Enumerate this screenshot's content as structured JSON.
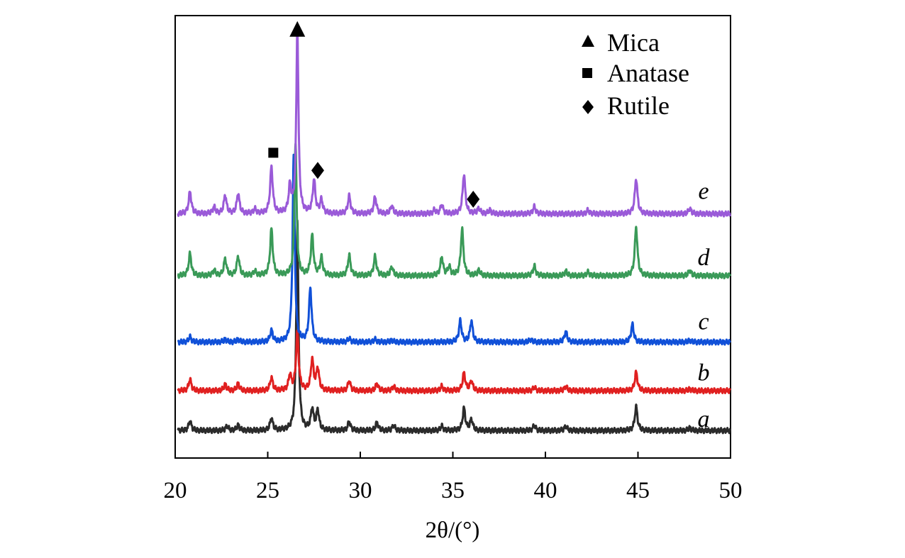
{
  "chart_data": {
    "type": "line",
    "title": "",
    "xlabel": "2θ/(°)",
    "ylabel": "",
    "xlim": [
      20,
      50
    ],
    "xticks": [
      20,
      25,
      30,
      35,
      40,
      45,
      50
    ],
    "xtick_labels": [
      "20",
      "25",
      "30",
      "35",
      "40",
      "45",
      "50"
    ],
    "y_units": "offset intensity (arbitrary)",
    "ylim": [
      0,
      100
    ],
    "legend_position": "top-right",
    "legend": [
      {
        "marker": "triangle",
        "label": "Mica"
      },
      {
        "marker": "square",
        "label": "Anatase"
      },
      {
        "marker": "diamond",
        "label": "Rutile"
      }
    ],
    "annotations": [
      {
        "marker": "triangle",
        "x": 26.6,
        "y": 97,
        "meaning": "Mica"
      },
      {
        "marker": "square",
        "x": 25.3,
        "y": 69,
        "meaning": "Anatase"
      },
      {
        "marker": "diamond",
        "x": 27.7,
        "y": 65,
        "meaning": "Rutile"
      },
      {
        "marker": "diamond",
        "x": 36.1,
        "y": 58.5,
        "meaning": "Rutile"
      }
    ],
    "series": [
      {
        "name": "a",
        "color": "#2b2b2b",
        "baseline": 6.2,
        "label_y": 9,
        "peaks": [
          [
            20.8,
            2.2
          ],
          [
            22.8,
            1.0
          ],
          [
            23.4,
            1.2
          ],
          [
            25.2,
            2.8
          ],
          [
            26.6,
            47
          ],
          [
            27.4,
            4.8
          ],
          [
            27.7,
            4.5
          ],
          [
            29.4,
            2.0
          ],
          [
            30.9,
            1.8
          ],
          [
            31.8,
            1.2
          ],
          [
            34.4,
            1.0
          ],
          [
            35.6,
            5.0
          ],
          [
            36.0,
            2.5
          ],
          [
            39.4,
            1.2
          ],
          [
            41.1,
            1.0
          ],
          [
            44.9,
            5.4
          ],
          [
            47.8,
            0.6
          ]
        ]
      },
      {
        "name": "b",
        "color": "#e02020",
        "baseline": 15.2,
        "label_y": 19.5,
        "peaks": [
          [
            20.8,
            2.6
          ],
          [
            22.7,
            1.4
          ],
          [
            23.4,
            1.6
          ],
          [
            25.2,
            3.0
          ],
          [
            26.2,
            3.5
          ],
          [
            26.6,
            13
          ],
          [
            27.4,
            7.0
          ],
          [
            27.7,
            5.0
          ],
          [
            29.4,
            2.2
          ],
          [
            30.9,
            1.6
          ],
          [
            31.8,
            1.0
          ],
          [
            34.4,
            1.0
          ],
          [
            35.6,
            4.0
          ],
          [
            36.0,
            2.2
          ],
          [
            39.4,
            0.8
          ],
          [
            41.1,
            1.0
          ],
          [
            44.9,
            4.2
          ],
          [
            47.8,
            0.4
          ]
        ]
      },
      {
        "name": "c",
        "color": "#1050d8",
        "baseline": 26.2,
        "label_y": 31,
        "peaks": [
          [
            20.8,
            1.2
          ],
          [
            22.7,
            0.6
          ],
          [
            23.4,
            0.6
          ],
          [
            25.2,
            2.6
          ],
          [
            26.4,
            42
          ],
          [
            27.3,
            12.0
          ],
          [
            29.4,
            0.8
          ],
          [
            30.8,
            0.6
          ],
          [
            31.7,
            0.4
          ],
          [
            35.4,
            4.8
          ],
          [
            36.0,
            4.8
          ],
          [
            39.2,
            0.6
          ],
          [
            41.1,
            2.4
          ],
          [
            44.7,
            4.0
          ],
          [
            47.8,
            0.4
          ]
        ]
      },
      {
        "name": "d",
        "color": "#3a9a58",
        "baseline": 41.2,
        "label_y": 45.5,
        "peaks": [
          [
            20.8,
            5.0
          ],
          [
            22.1,
            1.2
          ],
          [
            22.7,
            3.8
          ],
          [
            23.4,
            4.4
          ],
          [
            24.3,
            1.0
          ],
          [
            25.2,
            10.5
          ],
          [
            26.5,
            30
          ],
          [
            27.4,
            9.0
          ],
          [
            27.9,
            4.0
          ],
          [
            29.4,
            4.6
          ],
          [
            30.8,
            4.4
          ],
          [
            31.7,
            2.0
          ],
          [
            34.4,
            4.2
          ],
          [
            34.8,
            2.0
          ],
          [
            35.5,
            10.5
          ],
          [
            36.4,
            1.2
          ],
          [
            39.4,
            2.2
          ],
          [
            41.1,
            1.0
          ],
          [
            42.3,
            0.8
          ],
          [
            44.9,
            11.0
          ],
          [
            47.8,
            1.2
          ]
        ]
      },
      {
        "name": "e",
        "color": "#9a5ad8",
        "baseline": 55.2,
        "label_y": 60.5,
        "peaks": [
          [
            20.8,
            5.0
          ],
          [
            22.1,
            1.5
          ],
          [
            22.7,
            4.2
          ],
          [
            23.4,
            4.6
          ],
          [
            24.3,
            1.0
          ],
          [
            25.2,
            10.5
          ],
          [
            26.2,
            6.0
          ],
          [
            26.6,
            42
          ],
          [
            27.5,
            7.5
          ],
          [
            27.9,
            3.0
          ],
          [
            29.4,
            4.0
          ],
          [
            30.8,
            3.8
          ],
          [
            31.7,
            1.8
          ],
          [
            34.0,
            0.8
          ],
          [
            34.4,
            2.0
          ],
          [
            35.6,
            9.0
          ],
          [
            36.4,
            1.2
          ],
          [
            37.0,
            0.8
          ],
          [
            39.4,
            1.6
          ],
          [
            42.3,
            0.8
          ],
          [
            44.9,
            8.0
          ],
          [
            47.8,
            1.2
          ]
        ]
      }
    ]
  }
}
